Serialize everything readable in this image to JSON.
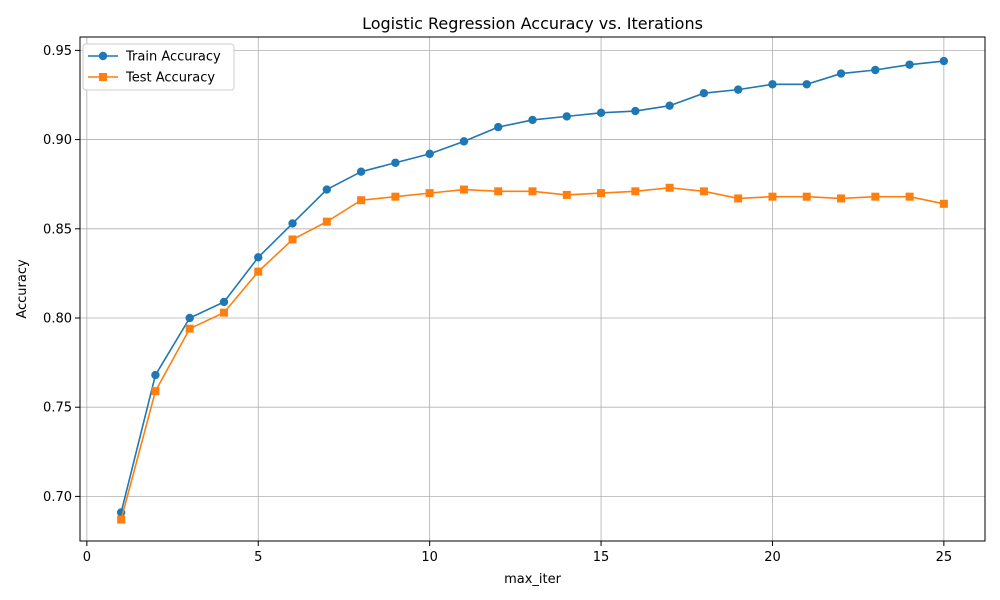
{
  "chart_data": {
    "type": "line",
    "title": "Logistic Regression Accuracy vs. Iterations",
    "xlabel": "max_iter",
    "ylabel": "Accuracy",
    "xlim": [
      -0.2,
      26.2
    ],
    "ylim": [
      0.675,
      0.9575
    ],
    "xticks": [
      0,
      5,
      10,
      15,
      20,
      25
    ],
    "xtick_labels": [
      "0",
      "5",
      "10",
      "15",
      "20",
      "25"
    ],
    "yticks": [
      0.7,
      0.75,
      0.8,
      0.85,
      0.9,
      0.95
    ],
    "ytick_labels": [
      "0.70",
      "0.75",
      "0.80",
      "0.85",
      "0.90",
      "0.95"
    ],
    "grid": true,
    "legend_position": "top-left",
    "x": [
      1,
      2,
      3,
      4,
      5,
      6,
      7,
      8,
      9,
      10,
      11,
      12,
      13,
      14,
      15,
      16,
      17,
      18,
      19,
      20,
      21,
      22,
      23,
      24,
      25
    ],
    "series": [
      {
        "name": "Train Accuracy",
        "color": "#1f77b4",
        "marker": "circle",
        "values": [
          0.691,
          0.768,
          0.8,
          0.809,
          0.834,
          0.853,
          0.872,
          0.882,
          0.887,
          0.892,
          0.899,
          0.907,
          0.911,
          0.913,
          0.915,
          0.916,
          0.919,
          0.926,
          0.928,
          0.931,
          0.931,
          0.937,
          0.939,
          0.942,
          0.944
        ]
      },
      {
        "name": "Test Accuracy",
        "color": "#ff7f0e",
        "marker": "square",
        "values": [
          0.687,
          0.759,
          0.794,
          0.803,
          0.826,
          0.844,
          0.854,
          0.866,
          0.868,
          0.87,
          0.872,
          0.871,
          0.871,
          0.869,
          0.87,
          0.871,
          0.873,
          0.871,
          0.867,
          0.868,
          0.868,
          0.867,
          0.868,
          0.868,
          0.864
        ]
      }
    ]
  }
}
